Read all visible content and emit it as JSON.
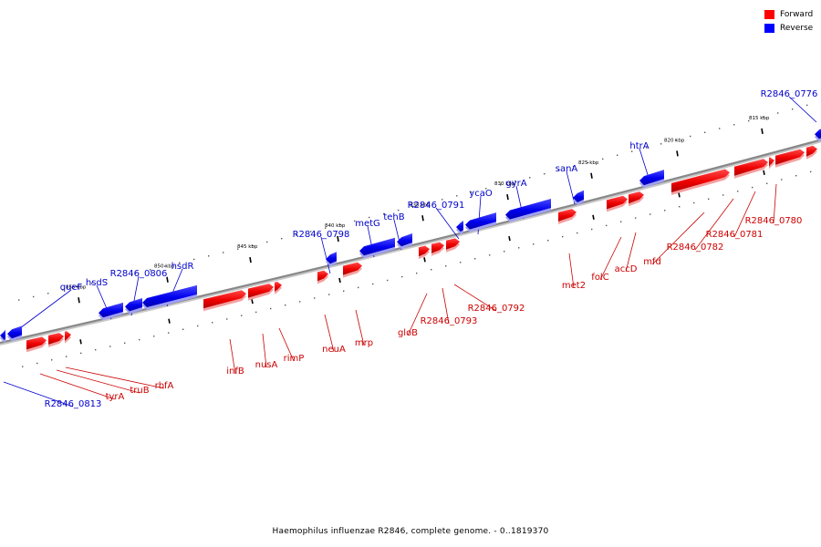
{
  "legend": {
    "forward_label": "Forward",
    "reverse_label": "Reverse",
    "forward_color": "#ff0000",
    "reverse_color": "#0000ff"
  },
  "caption": "Haemophilus influenzae R2846, complete genome. - 0..1819370",
  "colors": {
    "forward_label": "#cc0000",
    "reverse_label": "#0000cc",
    "backbone": "#888888"
  },
  "tick_labels": [
    "855 kbp",
    "850 kbp",
    "845 kbp",
    "840 kbp",
    "835 kbp",
    "830 kbp",
    "825 kbp",
    "820 kbp",
    "815 kbp"
  ],
  "genes": {
    "reverse": [
      "queF",
      "hsdS",
      "R2846_0806",
      "hsdR",
      "R2846_0798",
      "metG",
      "tehB",
      "R2846_0791",
      "ycaO",
      "gyrA",
      "sanA",
      "htrA",
      "R2846_0776",
      "R2846_0813"
    ],
    "forward": [
      "tyrA",
      "truB",
      "rbfA",
      "infB",
      "nusA",
      "rimP",
      "neuA",
      "mrp",
      "gloB",
      "R2846_0793",
      "R2846_0792",
      "met2",
      "folC",
      "accD",
      "mfd",
      "R2846_0782",
      "R2846_0781",
      "R2846_0780"
    ]
  }
}
